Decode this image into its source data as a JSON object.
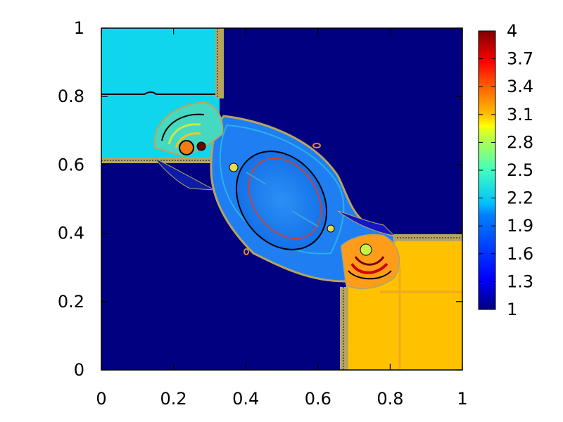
{
  "chart_data": {
    "type": "heatmap",
    "title": "",
    "xlabel": "",
    "ylabel": "",
    "xlim": [
      0,
      1
    ],
    "ylim": [
      0,
      1
    ],
    "x_ticks": [
      "0",
      "0.2",
      "0.4",
      "0.6",
      "0.8",
      "1"
    ],
    "y_ticks": [
      "0",
      "0.2",
      "0.4",
      "0.6",
      "0.8",
      "1"
    ],
    "colorbar": {
      "range": [
        1,
        4
      ],
      "ticks": [
        "1",
        "1.3",
        "1.6",
        "1.9",
        "2.2",
        "2.5",
        "2.8",
        "3.1",
        "3.4",
        "3.7",
        "4"
      ],
      "colormap": "jet"
    },
    "background_value": 1.0,
    "regions": [
      {
        "name": "upper-left quadrant",
        "x": [
          0,
          0.33
        ],
        "y": [
          0.61,
          1.0
        ],
        "value": 1.9
      },
      {
        "name": "lower-right quadrant",
        "x": [
          0.68,
          1.0
        ],
        "y": [
          0,
          0.37
        ],
        "value": 2.85
      },
      {
        "name": "central elongated region",
        "center": [
          0.5,
          0.47
        ],
        "value": 1.6
      },
      {
        "name": "inner core",
        "center": [
          0.48,
          0.47
        ],
        "value": 1.7
      }
    ],
    "annotations": []
  },
  "colors": {
    "background": "#000080",
    "upper_left": "#0fd6ec",
    "lower_right": "#ffc100",
    "central": "#1a7ff0",
    "contour_outer": "#b7a55f",
    "contour_dark": "#000000",
    "frame": "#000000"
  }
}
